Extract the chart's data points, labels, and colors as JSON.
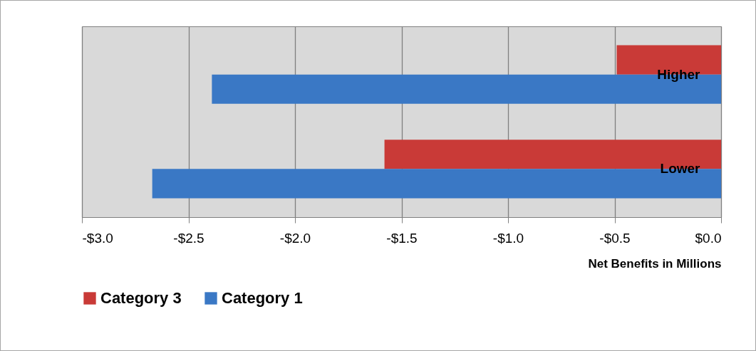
{
  "chart_data": {
    "type": "bar",
    "orientation": "horizontal",
    "categories": [
      "Higher",
      "Lower"
    ],
    "series": [
      {
        "name": "Category 3",
        "color": "#c93a37",
        "values": [
          -0.49,
          -1.58
        ]
      },
      {
        "name": "Category 1",
        "color": "#3a78c5",
        "values": [
          -2.39,
          -2.67
        ]
      }
    ],
    "xlabel": "Net Benefits in Millions",
    "xlim": [
      -3,
      0
    ],
    "xticks": [
      {
        "value": -3,
        "label": "-$3.0"
      },
      {
        "value": -2.5,
        "label": "-$2.5"
      },
      {
        "value": -2,
        "label": "-$2.0"
      },
      {
        "value": -1.5,
        "label": "-$1.5"
      },
      {
        "value": -1,
        "label": "-$1.0"
      },
      {
        "value": -0.5,
        "label": "-$0.5"
      },
      {
        "value": 0,
        "label": "$0.0"
      }
    ],
    "grid": "x",
    "legend": "bottom"
  }
}
